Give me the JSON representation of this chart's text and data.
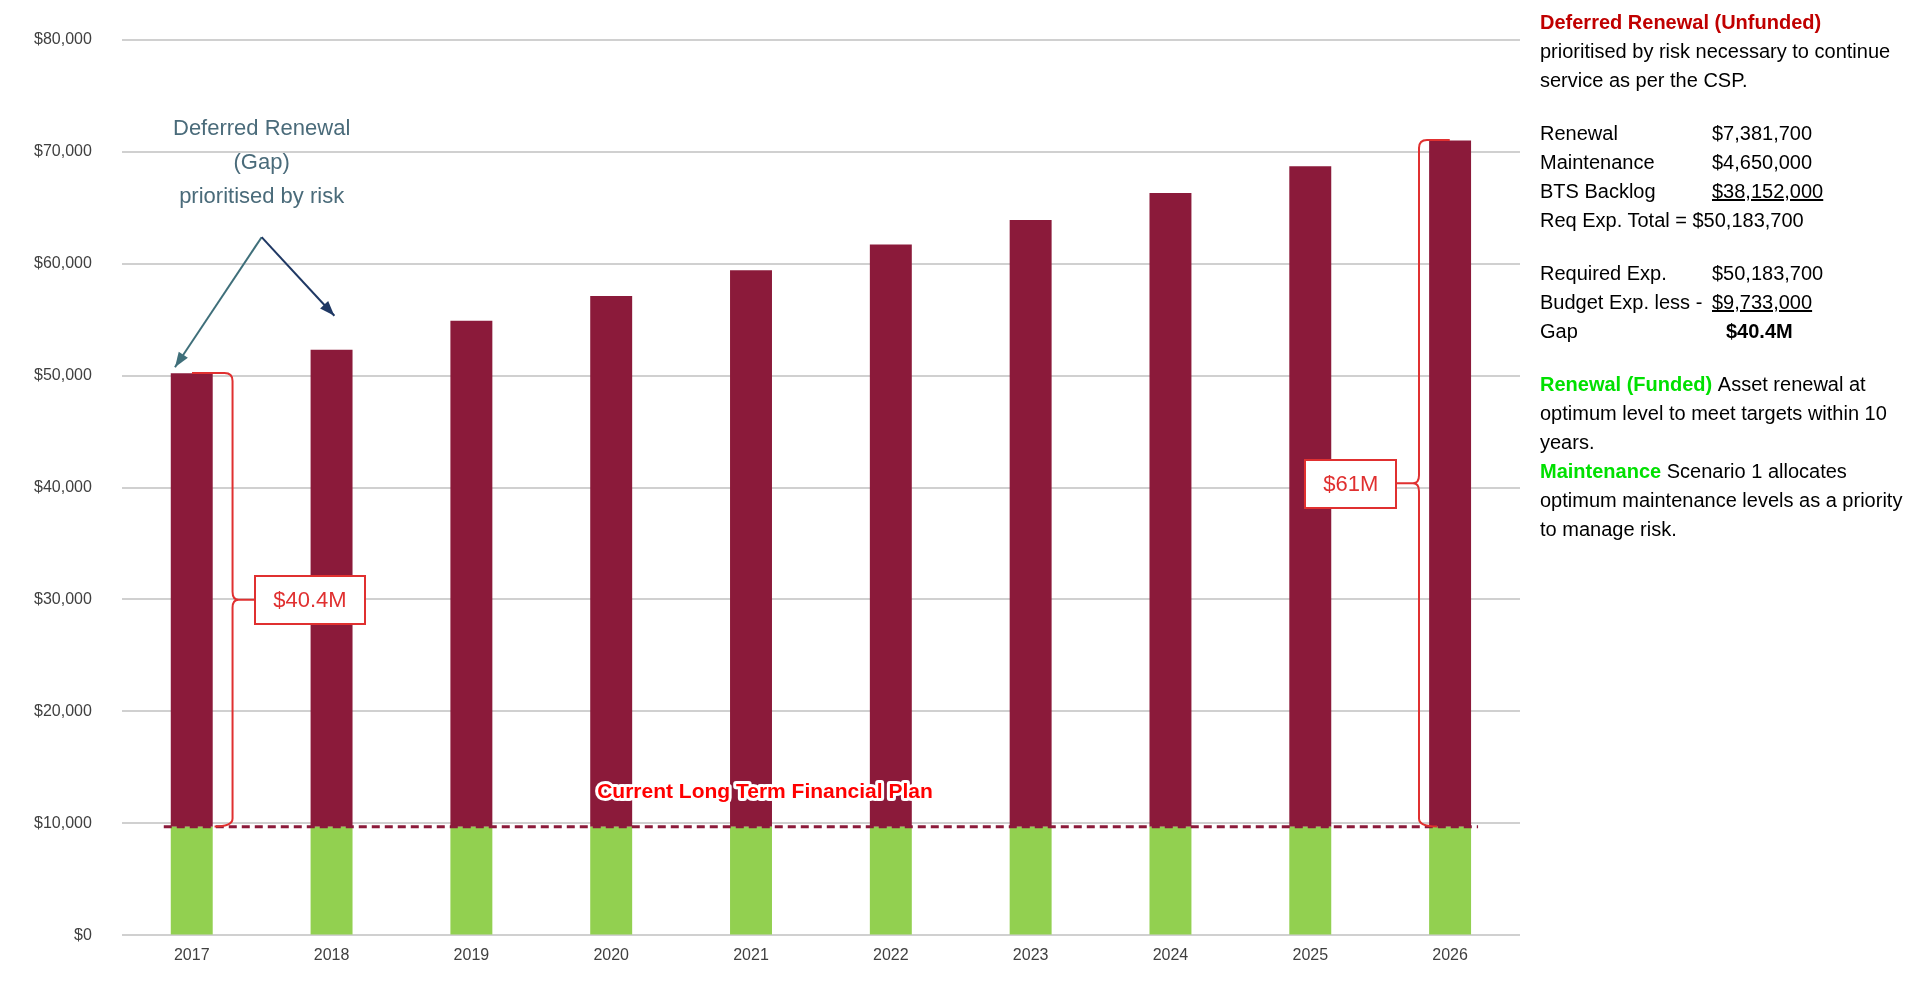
{
  "chart_data": {
    "type": "bar",
    "stacked": true,
    "categories": [
      "2017",
      "2018",
      "2019",
      "2020",
      "2021",
      "2022",
      "2023",
      "2024",
      "2025",
      "2026"
    ],
    "series": [
      {
        "color": "#92d050",
        "values": [
          9700,
          9700,
          9700,
          9700,
          9700,
          9700,
          9700,
          9700,
          9700,
          9700
        ]
      },
      {
        "color": "#8b1a3a",
        "values": [
          40500,
          42600,
          45200,
          47400,
          49700,
          52000,
          54200,
          56600,
          59000,
          61300
        ]
      }
    ],
    "ylim": [
      0,
      80000
    ],
    "yticks": [
      {
        "value": 0,
        "label": "$0"
      },
      {
        "value": 10000,
        "label": "$10,000"
      },
      {
        "value": 20000,
        "label": "$20,000"
      },
      {
        "value": 30000,
        "label": "$30,000"
      },
      {
        "value": 40000,
        "label": "$40,000"
      },
      {
        "value": 50000,
        "label": "$50,000"
      },
      {
        "value": 60000,
        "label": "$60,000"
      },
      {
        "value": 70000,
        "label": "$70,000"
      },
      {
        "value": 80000,
        "label": "$80,000"
      }
    ],
    "grid": "y",
    "ref_lines": [
      {
        "axis": "y",
        "value": 9700,
        "label": "Current Long Term Financial Plan",
        "color": "#8b1a3a",
        "line_style": "dashed"
      }
    ],
    "annotations": [
      "Deferred Renewal (Gap) prioritised by risk",
      {
        "text": "$40.4M",
        "x": "2017",
        "y": 50200
      },
      {
        "text": "$61M",
        "x": "2026",
        "y": 71000
      },
      "Deferred Renewal (Unfunded)",
      "prioritised by risk necessary to continue service as per the CSP.",
      "Renewal",
      "$7,381,700",
      "Maintenance",
      "$4,650,000",
      "BTS Backlog",
      "$38,152,000",
      "Req Exp. Total = $50,183,700",
      "Required Exp.",
      "$50,183,700",
      "Budget Exp. less -",
      "$9,733,000",
      "Gap",
      "$40.4M",
      "Renewal (Funded)",
      "Asset renewal at optimum level to meet targets within 10 years.",
      "Maintenance",
      "Scenario 1 allocates optimum maintenance levels as a priority to manage risk."
    ]
  }
}
